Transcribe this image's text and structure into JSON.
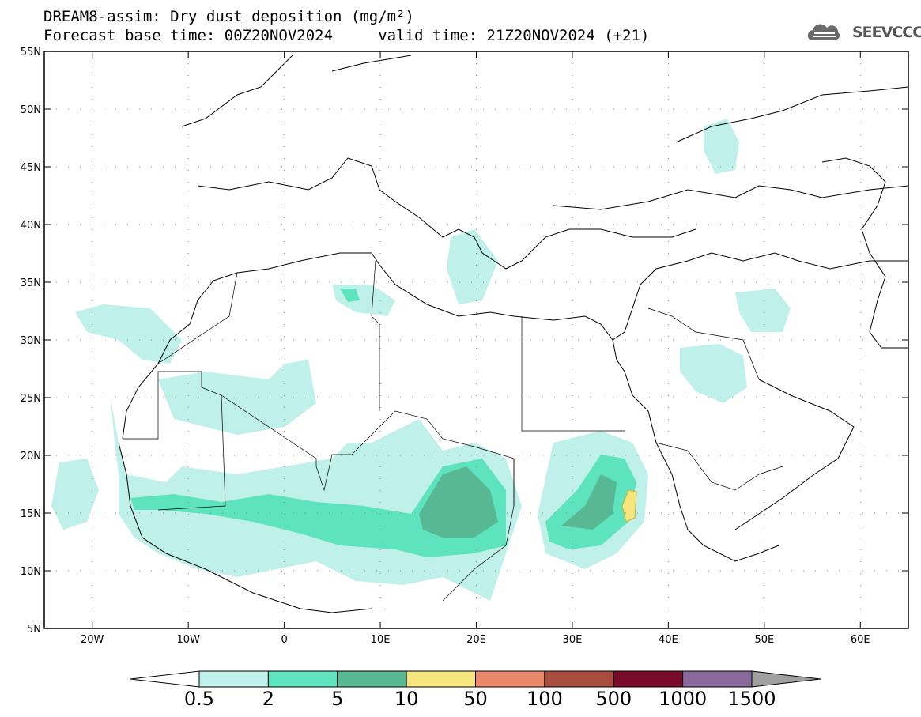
{
  "title": {
    "line1": "DREAM8-assim: Dry dust deposition (mg/m²)",
    "line2": "Forecast base time: 00Z20NOV2024     valid time: 21Z20NOV2024 (+21)"
  },
  "logo": {
    "text": "SEEVCCC",
    "icon": "cloud-icon"
  },
  "map": {
    "lon_range": [
      -25,
      65
    ],
    "lat_range": [
      5,
      55
    ],
    "lat_ticks": [
      "55N",
      "50N",
      "45N",
      "40N",
      "35N",
      "30N",
      "25N",
      "20N",
      "15N",
      "10N",
      "5N"
    ],
    "lon_ticks": [
      "20W",
      "10W",
      "0",
      "10E",
      "20E",
      "30E",
      "40E",
      "50E",
      "60E"
    ],
    "gridlines": "dotted"
  },
  "colorbar": {
    "labels": [
      "0.5",
      "2",
      "5",
      "10",
      "50",
      "100",
      "500",
      "1000",
      "1500"
    ],
    "colors": [
      "#bff0ea",
      "#5de3bd",
      "#58b894",
      "#f4e57c",
      "#e9876a",
      "#a84c40",
      "#7a0a2a",
      "#8a6a9c"
    ],
    "under_color": "#ffffff",
    "over_color": "#a0a0a0"
  }
}
